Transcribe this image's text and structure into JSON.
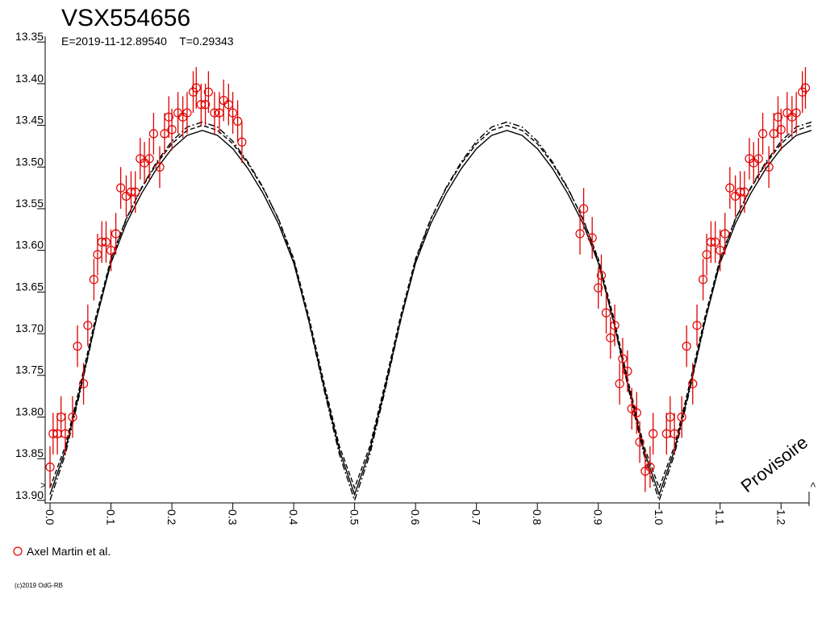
{
  "chart_data": {
    "type": "lightcurve",
    "title": "VSX554656",
    "subtitle": "E=2019-11-12.89540    T=0.29343",
    "watermark": "Provisoire",
    "credit": "(c)2019 OdG-RB",
    "left_marker": ">",
    "right_marker": "<",
    "xlim": [
      -0.008,
      1.246
    ],
    "ylim": [
      13.345,
      13.905
    ],
    "y_inverted": true,
    "xticks": [
      {
        "value": 0,
        "label": "0.0"
      },
      0.1,
      0.2,
      0.3,
      0.4,
      0.5,
      0.6,
      0.7,
      0.8,
      0.9,
      {
        "value": 1,
        "label": "1.0"
      },
      1.1,
      1.2
    ],
    "yticks": [
      13.35,
      {
        "value": 13.4,
        "label": "13.40"
      },
      13.45,
      {
        "value": 13.5,
        "label": "13.50"
      },
      13.55,
      {
        "value": 13.6,
        "label": "13.60"
      },
      13.65,
      {
        "value": 13.7,
        "label": "13.70"
      },
      13.75,
      {
        "value": 13.8,
        "label": "13.80"
      },
      13.85,
      {
        "value": 13.9,
        "label": "13.90"
      }
    ],
    "series": [
      {
        "name": "Axel Martin et al.",
        "color": "#e00000",
        "error": 0.025,
        "x": [
          0,
          0.005,
          0.012,
          0.018,
          0.025,
          0.037,
          0.045,
          0.055,
          0.062,
          0.072,
          0.078,
          0.085,
          0.092,
          0.1,
          0.108,
          0.116,
          0.125,
          0.133,
          0.14,
          0.148,
          0.155,
          0.163,
          0.17,
          0.18,
          0.188,
          0.195,
          0.2,
          0.21,
          0.218,
          0.225,
          0.235,
          0.24,
          0.248,
          0.255,
          0.26,
          0.27,
          0.278,
          0.285,
          0.293,
          0.3,
          0.308,
          0.315,
          0.87,
          0.876,
          0.89,
          0.9,
          0.905,
          0.913,
          0.92,
          0.927,
          0.935,
          0.94,
          0.948,
          0.955,
          0.963,
          0.968,
          0.977,
          0.985,
          0.99,
          1.012,
          1.018,
          1.025,
          1.037,
          1.045,
          1.055,
          1.062,
          1.072,
          1.078,
          1.085,
          1.092,
          1.1,
          1.108,
          1.116,
          1.125,
          1.133,
          1.14,
          1.148,
          1.155,
          1.163,
          1.17,
          1.18,
          1.188,
          1.195,
          1.2,
          1.21,
          1.218,
          1.225,
          1.235,
          1.24
        ],
        "values": [
          13.86,
          13.82,
          13.82,
          13.8,
          13.82,
          13.8,
          13.715,
          13.76,
          13.69,
          13.635,
          13.605,
          13.59,
          13.59,
          13.6,
          13.58,
          13.525,
          13.535,
          13.53,
          13.53,
          13.49,
          13.495,
          13.49,
          13.46,
          13.5,
          13.46,
          13.44,
          13.455,
          13.435,
          13.44,
          13.435,
          13.41,
          13.405,
          13.425,
          13.425,
          13.41,
          13.435,
          13.435,
          13.42,
          13.425,
          13.435,
          13.445,
          13.47,
          13.58,
          13.55,
          13.585,
          13.645,
          13.63,
          13.675,
          13.705,
          13.69,
          13.76,
          13.73,
          13.745,
          13.79,
          13.795,
          13.83,
          13.865,
          13.86,
          13.82,
          13.82,
          13.8,
          13.82,
          13.8,
          13.715,
          13.76,
          13.69,
          13.635,
          13.605,
          13.59,
          13.59,
          13.6,
          13.58,
          13.525,
          13.535,
          13.53,
          13.53,
          13.49,
          13.495,
          13.49,
          13.46,
          13.5,
          13.46,
          13.44,
          13.455,
          13.435,
          13.44,
          13.435,
          13.41,
          13.405
        ]
      }
    ],
    "line_x": [
      0,
      0.025,
      0.05,
      0.075,
      0.1,
      0.125,
      0.15,
      0.175,
      0.2,
      0.225,
      0.25,
      0.275,
      0.3,
      0.325,
      0.35,
      0.375,
      0.4,
      0.425,
      0.45,
      0.475,
      0.5,
      0.525,
      0.55,
      0.575,
      0.6,
      0.625,
      0.65,
      0.675,
      0.7,
      0.725,
      0.75,
      0.775,
      0.8,
      0.825,
      0.85,
      0.875,
      0.9,
      0.925,
      0.95,
      0.975,
      1,
      1.025,
      1.05,
      1.075,
      1.1,
      1.125,
      1.15,
      1.175,
      1.2,
      1.225,
      1.25
    ],
    "lines": [
      {
        "color": "#000000",
        "dash": "none",
        "values": [
          13.893,
          13.84,
          13.765,
          13.685,
          13.615,
          13.568,
          13.532,
          13.502,
          13.478,
          13.462,
          13.456,
          13.462,
          13.478,
          13.502,
          13.532,
          13.568,
          13.615,
          13.685,
          13.765,
          13.84,
          13.893,
          13.84,
          13.765,
          13.685,
          13.615,
          13.568,
          13.532,
          13.502,
          13.478,
          13.462,
          13.456,
          13.462,
          13.478,
          13.502,
          13.532,
          13.568,
          13.615,
          13.685,
          13.765,
          13.84,
          13.893,
          13.84,
          13.765,
          13.685,
          13.615,
          13.568,
          13.532,
          13.502,
          13.478,
          13.462,
          13.456
        ]
      },
      {
        "color": "#000000",
        "dash": "6,3",
        "values": [
          13.885,
          13.835,
          13.76,
          13.68,
          13.61,
          13.562,
          13.526,
          13.496,
          13.472,
          13.456,
          13.45,
          13.456,
          13.472,
          13.496,
          13.526,
          13.562,
          13.61,
          13.68,
          13.76,
          13.835,
          13.885,
          13.835,
          13.76,
          13.68,
          13.61,
          13.562,
          13.526,
          13.496,
          13.472,
          13.456,
          13.45,
          13.456,
          13.472,
          13.496,
          13.526,
          13.562,
          13.61,
          13.68,
          13.76,
          13.835,
          13.885,
          13.835,
          13.76,
          13.68,
          13.61,
          13.562,
          13.526,
          13.496,
          13.472,
          13.456,
          13.45
        ]
      },
      {
        "color": "#000000",
        "dash": "8,3,2,3",
        "values": [
          13.9,
          13.845,
          13.768,
          13.686,
          13.612,
          13.563,
          13.525,
          13.494,
          13.469,
          13.452,
          13.446,
          13.452,
          13.469,
          13.494,
          13.525,
          13.563,
          13.612,
          13.686,
          13.768,
          13.845,
          13.9,
          13.845,
          13.768,
          13.686,
          13.612,
          13.563,
          13.525,
          13.494,
          13.469,
          13.452,
          13.446,
          13.452,
          13.469,
          13.494,
          13.525,
          13.563,
          13.612,
          13.686,
          13.768,
          13.845,
          13.9,
          13.845,
          13.768,
          13.686,
          13.612,
          13.563,
          13.525,
          13.494,
          13.469,
          13.452,
          13.446
        ]
      }
    ]
  }
}
